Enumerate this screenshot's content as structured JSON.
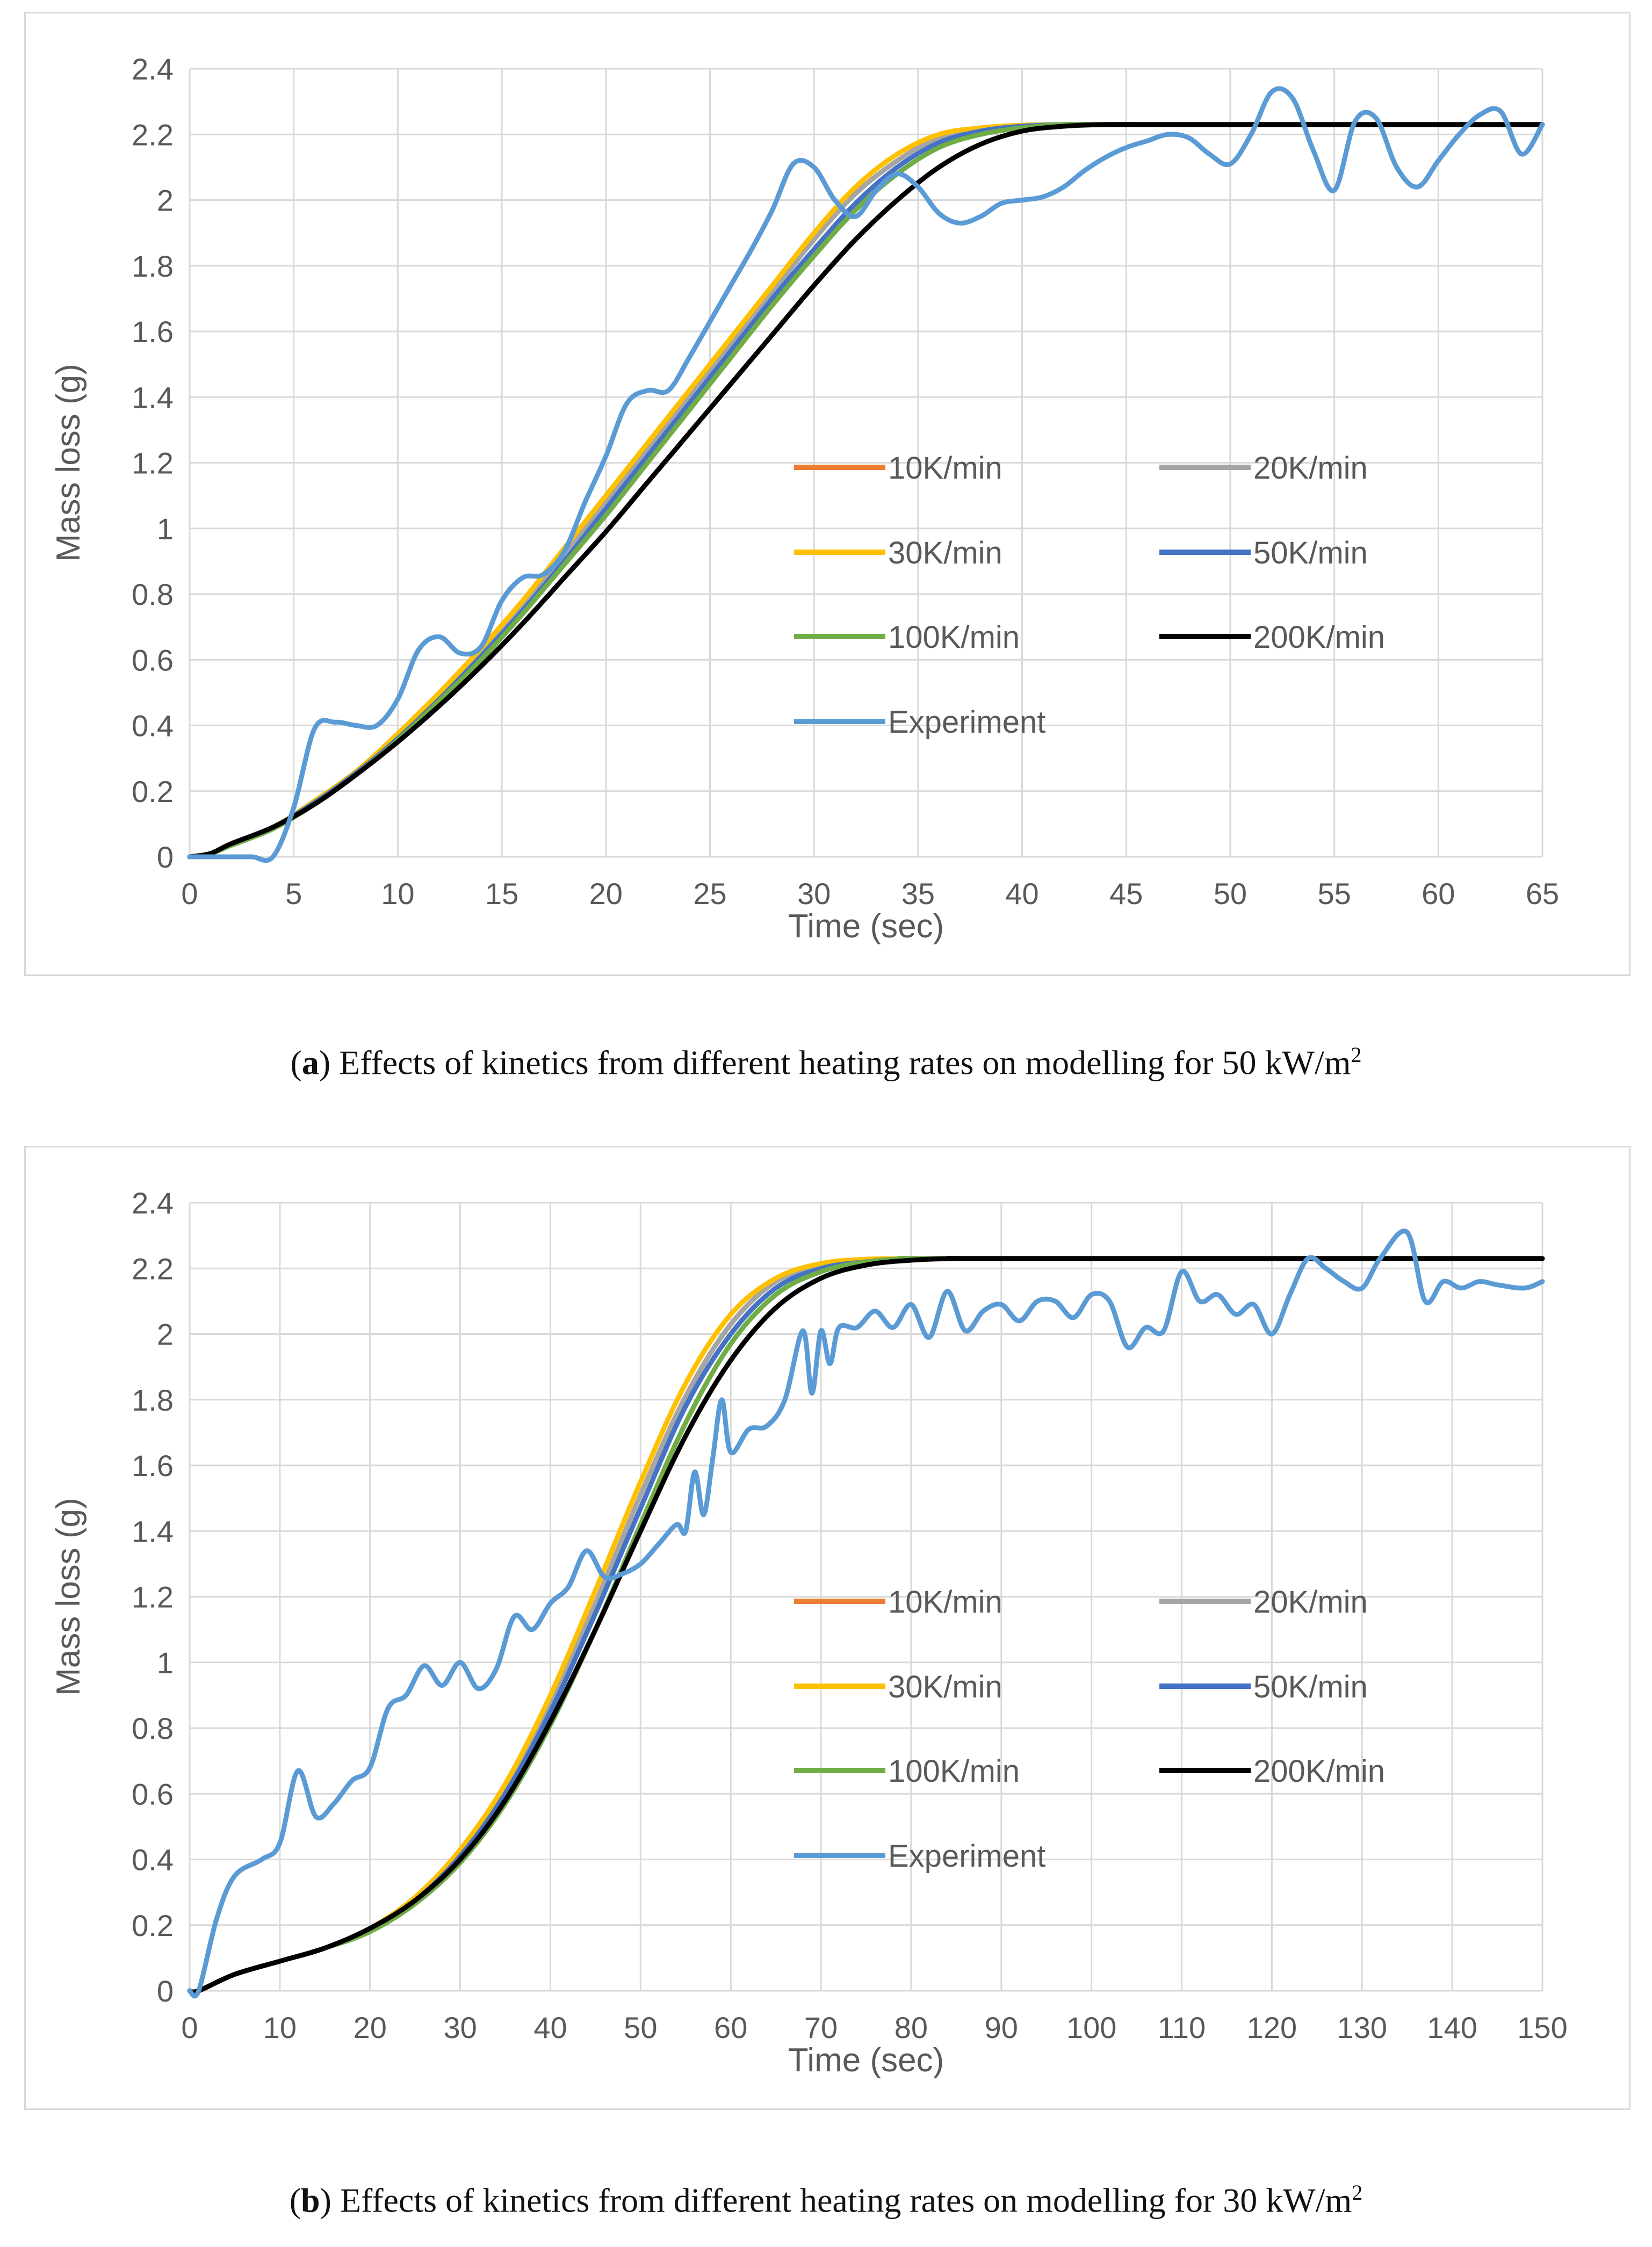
{
  "colors": {
    "grid": "#d9d9d9",
    "axis_text": "#595959",
    "r10": "#ed7d31",
    "r20": "#a5a5a5",
    "r30": "#ffc000",
    "r50": "#4472c4",
    "r100": "#70ad47",
    "r200": "#000000",
    "experiment": "#5b9bd5"
  },
  "captions": {
    "a": {
      "letter": "a",
      "text": " Effects of kinetics from different heating rates on modelling for 50 kW/m",
      "sup": "2"
    },
    "b": {
      "letter": "b",
      "text": " Effects of kinetics from different heating rates on modelling for 30 kW/m",
      "sup": "2"
    }
  },
  "chart_data": [
    {
      "type": "line",
      "id": "a",
      "xlabel": "Time (sec)",
      "ylabel": "Mass loss (g)",
      "xlim": [
        0,
        65
      ],
      "ylim": [
        0,
        2.4
      ],
      "xticks": [
        0,
        5,
        10,
        15,
        20,
        25,
        30,
        35,
        40,
        45,
        50,
        55,
        60,
        65
      ],
      "yticks": [
        "0",
        "0.2",
        "0.4",
        "0.6",
        "0.8",
        "1",
        "1.2",
        "1.4",
        "1.6",
        "1.8",
        "2",
        "2.2",
        "2.4"
      ],
      "legend": [
        "10K/min",
        "20K/min",
        "30K/min",
        "50K/min",
        "100K/min",
        "200K/min",
        "Experiment"
      ],
      "series": [
        {
          "name": "10K/min",
          "color_key": "r10",
          "x": [
            0,
            1,
            2,
            4,
            6,
            8,
            10,
            12,
            14,
            16,
            18,
            20,
            22,
            24,
            26,
            28,
            30,
            32,
            34,
            36,
            38,
            40,
            42,
            44,
            46,
            65
          ],
          "y": [
            0,
            0.01,
            0.04,
            0.09,
            0.17,
            0.26,
            0.37,
            0.49,
            0.62,
            0.76,
            0.92,
            1.08,
            1.24,
            1.4,
            1.56,
            1.72,
            1.88,
            2.02,
            2.12,
            2.19,
            2.215,
            2.225,
            2.23,
            2.23,
            2.23,
            2.23
          ]
        },
        {
          "name": "20K/min",
          "color_key": "r20",
          "x": [
            0,
            1,
            2,
            4,
            6,
            8,
            10,
            12,
            14,
            16,
            18,
            20,
            22,
            24,
            26,
            28,
            30,
            32,
            34,
            36,
            38,
            40,
            42,
            44,
            46,
            65
          ],
          "y": [
            0,
            0.01,
            0.04,
            0.09,
            0.17,
            0.26,
            0.37,
            0.49,
            0.62,
            0.76,
            0.92,
            1.08,
            1.24,
            1.4,
            1.56,
            1.72,
            1.88,
            2.02,
            2.12,
            2.19,
            2.215,
            2.225,
            2.23,
            2.23,
            2.23,
            2.23
          ]
        },
        {
          "name": "30K/min",
          "color_key": "r30",
          "x": [
            0,
            1,
            2,
            4,
            6,
            8,
            10,
            12,
            14,
            16,
            18,
            20,
            22,
            24,
            26,
            28,
            30,
            32,
            34,
            36,
            38,
            40,
            42,
            44,
            46,
            65
          ],
          "y": [
            0,
            0.01,
            0.04,
            0.09,
            0.17,
            0.26,
            0.375,
            0.5,
            0.635,
            0.78,
            0.94,
            1.1,
            1.26,
            1.42,
            1.58,
            1.74,
            1.9,
            2.04,
            2.14,
            2.2,
            2.22,
            2.228,
            2.23,
            2.23,
            2.23,
            2.23
          ]
        },
        {
          "name": "50K/min",
          "color_key": "r50",
          "x": [
            0,
            1,
            2,
            4,
            6,
            8,
            10,
            12,
            14,
            16,
            18,
            20,
            22,
            24,
            26,
            28,
            30,
            32,
            34,
            36,
            38,
            40,
            42,
            44,
            46,
            65
          ],
          "y": [
            0,
            0.01,
            0.04,
            0.09,
            0.165,
            0.255,
            0.36,
            0.48,
            0.61,
            0.75,
            0.9,
            1.06,
            1.22,
            1.38,
            1.54,
            1.7,
            1.85,
            1.99,
            2.1,
            2.175,
            2.21,
            2.225,
            2.23,
            2.23,
            2.23,
            2.23
          ]
        },
        {
          "name": "100K/min",
          "color_key": "r100",
          "x": [
            0,
            1,
            2,
            4,
            6,
            8,
            10,
            12,
            14,
            16,
            18,
            20,
            22,
            24,
            26,
            28,
            30,
            32,
            34,
            36,
            38,
            40,
            42,
            44,
            46,
            65
          ],
          "y": [
            0,
            0.01,
            0.035,
            0.085,
            0.16,
            0.25,
            0.355,
            0.475,
            0.6,
            0.74,
            0.89,
            1.04,
            1.2,
            1.36,
            1.52,
            1.68,
            1.83,
            1.97,
            2.08,
            2.16,
            2.2,
            2.22,
            2.23,
            2.23,
            2.23,
            2.23
          ]
        },
        {
          "name": "200K/min",
          "color_key": "r200",
          "x": [
            0,
            1,
            2,
            4,
            6,
            8,
            10,
            12,
            14,
            16,
            18,
            20,
            22,
            24,
            26,
            28,
            30,
            32,
            34,
            36,
            38,
            40,
            42,
            44,
            46,
            48,
            65
          ],
          "y": [
            0,
            0.01,
            0.04,
            0.09,
            0.16,
            0.25,
            0.35,
            0.46,
            0.58,
            0.71,
            0.85,
            0.99,
            1.14,
            1.29,
            1.44,
            1.59,
            1.74,
            1.88,
            2.0,
            2.1,
            2.17,
            2.21,
            2.225,
            2.23,
            2.23,
            2.23,
            2.23
          ]
        },
        {
          "name": "Experiment",
          "color_key": "experiment",
          "x": [
            0,
            2,
            3,
            4,
            5,
            6,
            7,
            8,
            9,
            10,
            11,
            12,
            13,
            14,
            15,
            16,
            17,
            18,
            19,
            20,
            21,
            22,
            23,
            24,
            25,
            26,
            27,
            28,
            29,
            30,
            31,
            32,
            33,
            34,
            35,
            36,
            37,
            38,
            39,
            40,
            41,
            42,
            43,
            44,
            45,
            46,
            47,
            48,
            49,
            50,
            51,
            52,
            53,
            54,
            55,
            56,
            57,
            58,
            59,
            60,
            61,
            62,
            63,
            64,
            65
          ],
          "y": [
            0,
            0,
            0,
            0,
            0.15,
            0.39,
            0.41,
            0.4,
            0.4,
            0.48,
            0.63,
            0.67,
            0.62,
            0.64,
            0.78,
            0.85,
            0.86,
            0.93,
            1.08,
            1.22,
            1.38,
            1.42,
            1.42,
            1.52,
            1.63,
            1.74,
            1.85,
            1.97,
            2.11,
            2.1,
            2.0,
            1.95,
            2.03,
            2.08,
            2.04,
            1.96,
            1.93,
            1.95,
            1.99,
            2.0,
            2.01,
            2.04,
            2.09,
            2.13,
            2.16,
            2.18,
            2.2,
            2.19,
            2.14,
            2.11,
            2.2,
            2.33,
            2.31,
            2.15,
            2.03,
            2.24,
            2.25,
            2.1,
            2.04,
            2.12,
            2.2,
            2.26,
            2.27,
            2.14,
            2.23
          ]
        }
      ]
    },
    {
      "type": "line",
      "id": "b",
      "xlabel": "Time (sec)",
      "ylabel": "Mass loss (g)",
      "xlim": [
        0,
        150
      ],
      "ylim": [
        0,
        2.4
      ],
      "xticks": [
        0,
        10,
        20,
        30,
        40,
        50,
        60,
        70,
        80,
        90,
        100,
        110,
        120,
        130,
        140,
        150
      ],
      "yticks": [
        "0",
        "0.2",
        "0.4",
        "0.6",
        "0.8",
        "1",
        "1.2",
        "1.4",
        "1.6",
        "1.8",
        "2",
        "2.2",
        "2.4"
      ],
      "legend": [
        "10K/min",
        "20K/min",
        "30K/min",
        "50K/min",
        "100K/min",
        "200K/min",
        "Experiment"
      ],
      "series": [
        {
          "name": "10K/min",
          "color_key": "r10",
          "x": [
            0,
            1,
            5,
            10,
            15,
            20,
            25,
            30,
            35,
            40,
            45,
            50,
            55,
            60,
            65,
            70,
            75,
            80,
            85,
            150
          ],
          "y": [
            0,
            0,
            0.05,
            0.09,
            0.13,
            0.19,
            0.28,
            0.42,
            0.61,
            0.87,
            1.18,
            1.51,
            1.81,
            2.03,
            2.16,
            2.21,
            2.225,
            2.23,
            2.23,
            2.23
          ]
        },
        {
          "name": "20K/min",
          "color_key": "r20",
          "x": [
            0,
            1,
            5,
            10,
            15,
            20,
            25,
            30,
            35,
            40,
            45,
            50,
            55,
            60,
            65,
            70,
            75,
            80,
            85,
            150
          ],
          "y": [
            0,
            0,
            0.05,
            0.09,
            0.13,
            0.19,
            0.28,
            0.42,
            0.61,
            0.87,
            1.18,
            1.51,
            1.81,
            2.03,
            2.16,
            2.21,
            2.225,
            2.23,
            2.23,
            2.23
          ]
        },
        {
          "name": "30K/min",
          "color_key": "r30",
          "x": [
            0,
            1,
            5,
            10,
            15,
            20,
            25,
            30,
            35,
            40,
            45,
            50,
            55,
            60,
            65,
            70,
            75,
            80,
            85,
            150
          ],
          "y": [
            0,
            0,
            0.05,
            0.09,
            0.13,
            0.19,
            0.285,
            0.43,
            0.63,
            0.9,
            1.22,
            1.55,
            1.85,
            2.06,
            2.17,
            2.215,
            2.228,
            2.23,
            2.23,
            2.23
          ]
        },
        {
          "name": "50K/min",
          "color_key": "r50",
          "x": [
            0,
            1,
            5,
            10,
            15,
            20,
            25,
            30,
            35,
            40,
            45,
            50,
            55,
            60,
            65,
            70,
            75,
            80,
            85,
            150
          ],
          "y": [
            0,
            0,
            0.05,
            0.09,
            0.13,
            0.19,
            0.275,
            0.41,
            0.6,
            0.85,
            1.15,
            1.47,
            1.78,
            2.0,
            2.14,
            2.2,
            2.22,
            2.23,
            2.23,
            2.23
          ]
        },
        {
          "name": "100K/min",
          "color_key": "r100",
          "x": [
            0,
            1,
            5,
            10,
            15,
            20,
            25,
            30,
            35,
            40,
            45,
            50,
            55,
            60,
            65,
            70,
            75,
            80,
            85,
            150
          ],
          "y": [
            0,
            0,
            0.05,
            0.09,
            0.13,
            0.18,
            0.265,
            0.39,
            0.57,
            0.81,
            1.1,
            1.42,
            1.73,
            1.97,
            2.12,
            2.19,
            2.22,
            2.23,
            2.23,
            2.23
          ]
        },
        {
          "name": "200K/min",
          "color_key": "r200",
          "x": [
            0,
            1,
            5,
            10,
            15,
            20,
            25,
            30,
            35,
            40,
            45,
            50,
            55,
            60,
            65,
            70,
            75,
            80,
            85,
            90,
            150
          ],
          "y": [
            0,
            0,
            0.05,
            0.09,
            0.13,
            0.19,
            0.275,
            0.4,
            0.58,
            0.82,
            1.1,
            1.4,
            1.69,
            1.92,
            2.08,
            2.17,
            2.21,
            2.225,
            2.23,
            2.23,
            2.23
          ]
        },
        {
          "name": "Experiment",
          "color_key": "experiment",
          "x": [
            0,
            1,
            3,
            5,
            8,
            10,
            12,
            14,
            16,
            18,
            20,
            22,
            24,
            26,
            28,
            30,
            32,
            34,
            36,
            38,
            40,
            42,
            44,
            46,
            48,
            50,
            52,
            54,
            55,
            56,
            57,
            58,
            59,
            60,
            62,
            64,
            66,
            68,
            69,
            70,
            71,
            72,
            74,
            76,
            78,
            80,
            82,
            84,
            86,
            88,
            90,
            92,
            94,
            96,
            98,
            100,
            102,
            104,
            106,
            108,
            110,
            112,
            114,
            116,
            118,
            120,
            122,
            124,
            126,
            128,
            130,
            132,
            135,
            137,
            139,
            141,
            143,
            145,
            148,
            150
          ],
          "y": [
            0,
            0,
            0.22,
            0.35,
            0.4,
            0.45,
            0.67,
            0.53,
            0.57,
            0.64,
            0.68,
            0.86,
            0.9,
            0.99,
            0.93,
            1.0,
            0.92,
            0.98,
            1.14,
            1.1,
            1.18,
            1.23,
            1.34,
            1.26,
            1.27,
            1.3,
            1.36,
            1.42,
            1.4,
            1.58,
            1.45,
            1.62,
            1.8,
            1.64,
            1.71,
            1.72,
            1.8,
            2.01,
            1.82,
            2.01,
            1.91,
            2.02,
            2.02,
            2.07,
            2.02,
            2.09,
            1.99,
            2.13,
            2.01,
            2.07,
            2.09,
            2.04,
            2.1,
            2.1,
            2.05,
            2.12,
            2.1,
            1.96,
            2.02,
            2.01,
            2.19,
            2.1,
            2.12,
            2.06,
            2.09,
            2.0,
            2.12,
            2.23,
            2.2,
            2.16,
            2.14,
            2.23,
            2.31,
            2.1,
            2.16,
            2.14,
            2.16,
            2.15,
            2.14,
            2.16
          ]
        }
      ]
    }
  ]
}
